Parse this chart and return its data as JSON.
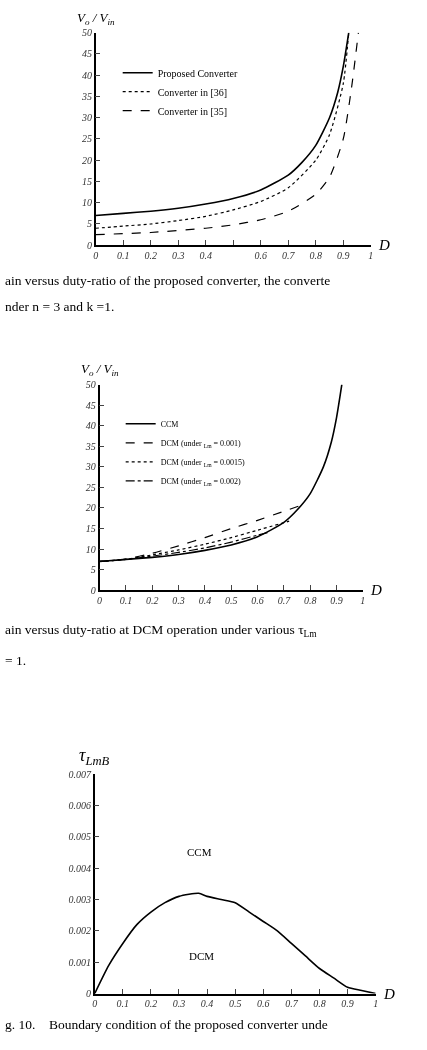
{
  "chart_data": [
    {
      "type": "line",
      "xlabel": "D",
      "ylabel": "V$_{o}$ / V$_{in}$",
      "xlim": [
        0,
        1
      ],
      "ylim": [
        0,
        50
      ],
      "xticks": [
        0,
        0.1,
        0.2,
        0.3,
        0.4,
        {
          "value": 0.5,
          "label": null
        },
        0.6,
        0.7,
        0.8,
        0.9,
        1
      ],
      "yticks": [
        0,
        5,
        10,
        15,
        20,
        25,
        30,
        35,
        40,
        45,
        50
      ],
      "legend": "top left",
      "marker": "none",
      "annotations": [
        "ain versus duty-ratio of the proposed converter, the converte",
        "nder n = 3 and k =1."
      ],
      "series": [
        {
          "name": "Proposed Converter",
          "color": "#000000",
          "line_style": "solid",
          "x": [
            0,
            0.1,
            0.2,
            0.3,
            0.4,
            0.5,
            0.6,
            0.7,
            0.75,
            0.8,
            0.85,
            0.88,
            0.9,
            0.92
          ],
          "values": [
            7,
            7.5,
            8,
            8.7,
            9.7,
            11,
            13,
            16.5,
            19.5,
            23.5,
            30,
            36,
            42,
            50
          ]
        },
        {
          "name": "Converter in [36]",
          "color": "#000000",
          "line_style": "dotted",
          "x": [
            0,
            0.1,
            0.2,
            0.3,
            0.4,
            0.5,
            0.6,
            0.7,
            0.8,
            0.85,
            0.9,
            0.92
          ],
          "values": [
            4,
            4.5,
            5,
            5.8,
            6.8,
            8.3,
            10.3,
            13.5,
            20,
            26,
            38,
            50
          ]
        },
        {
          "name": "Converter in [35]",
          "color": "#000000",
          "line_style": "dashed",
          "x": [
            0,
            0.2,
            0.4,
            0.5,
            0.6,
            0.7,
            0.8,
            0.85,
            0.9,
            0.93,
            0.955
          ],
          "values": [
            2.5,
            3,
            4,
            4.8,
            6,
            8,
            12,
            16,
            25,
            37,
            50
          ]
        }
      ]
    },
    {
      "type": "line",
      "xlabel": "D",
      "ylabel": "V$_{o}$ / V$_{in}$",
      "xlim": [
        0,
        1
      ],
      "ylim": [
        0,
        50
      ],
      "xticks": [
        0,
        0.1,
        0.2,
        0.3,
        0.4,
        0.5,
        0.6,
        0.7,
        0.8,
        0.9,
        1
      ],
      "yticks": [
        0,
        5,
        10,
        15,
        20,
        25,
        30,
        35,
        40,
        45,
        50
      ],
      "legend": "top left",
      "marker": "none",
      "annotations": [
        "ain versus duty-ratio at DCM operation under various τ$_{Lm}$",
        "= 1."
      ],
      "series": [
        {
          "name": "CCM",
          "color": "#000000",
          "line_style": "solid",
          "x": [
            0,
            0.1,
            0.2,
            0.3,
            0.4,
            0.5,
            0.6,
            0.7,
            0.75,
            0.8,
            0.85,
            0.88,
            0.9,
            0.92
          ],
          "values": [
            7,
            7.5,
            8,
            8.7,
            9.7,
            11,
            13,
            16.5,
            19.5,
            23.5,
            30,
            36,
            42,
            50
          ]
        },
        {
          "name": "DCM (under $_{Lm}$ = 0.001)",
          "color": "#000000",
          "line_style": "dashed",
          "x": [
            0,
            0.1,
            0.2,
            0.3,
            0.4,
            0.5,
            0.6,
            0.7,
            0.78
          ],
          "values": [
            7,
            7.6,
            9,
            10.8,
            12.8,
            15,
            17,
            19.2,
            21
          ]
        },
        {
          "name": "DCM (under $_{Lm}$ = 0.0015)",
          "color": "#000000",
          "line_style": "dotted",
          "x": [
            0,
            0.1,
            0.2,
            0.3,
            0.4,
            0.5,
            0.6,
            0.72
          ],
          "values": [
            7,
            7.5,
            8.6,
            9.8,
            11.2,
            12.8,
            14.6,
            16.8
          ]
        },
        {
          "name": "DCM (under $_{Lm}$ = 0.002)",
          "color": "#000000",
          "line_style": "dashdot",
          "x": [
            0,
            0.1,
            0.2,
            0.3,
            0.4,
            0.5,
            0.6,
            0.65
          ],
          "values": [
            7,
            7.5,
            8.3,
            9.2,
            10.3,
            11.7,
            13.4,
            14.2
          ]
        }
      ]
    },
    {
      "type": "line",
      "xlabel": "D",
      "ylabel": "τ$_{LmB}$",
      "xlim": [
        0,
        1
      ],
      "ylim": [
        0,
        0.007
      ],
      "xticks": [
        0,
        0.1,
        0.2,
        0.3,
        0.4,
        0.5,
        0.6,
        0.7,
        0.8,
        0.9,
        1
      ],
      "yticks": [
        0,
        0.001,
        0.002,
        0.003,
        0.004,
        0.005,
        0.006,
        0.007
      ],
      "legend": false,
      "marker": "none",
      "annotations": [
        "CCM",
        "DCM",
        "g. 10.    Boundary condition of the proposed converter unde"
      ],
      "series": [
        {
          "color": "#000000",
          "line_style": "solid",
          "x": [
            0,
            0.05,
            0.1,
            0.15,
            0.2,
            0.25,
            0.3,
            0.37,
            0.4,
            0.45,
            0.5,
            0.55,
            0.6,
            0.65,
            0.7,
            0.75,
            0.8,
            0.85,
            0.9,
            0.95,
            1
          ],
          "values": [
            0,
            0.0009,
            0.0016,
            0.0022,
            0.0026,
            0.0029,
            0.0031,
            0.0032,
            0.0031,
            0.003,
            0.0029,
            0.0026,
            0.0023,
            0.002,
            0.0016,
            0.0012,
            0.0008,
            0.0005,
            0.0002,
            0.0001,
            0
          ]
        }
      ]
    }
  ]
}
